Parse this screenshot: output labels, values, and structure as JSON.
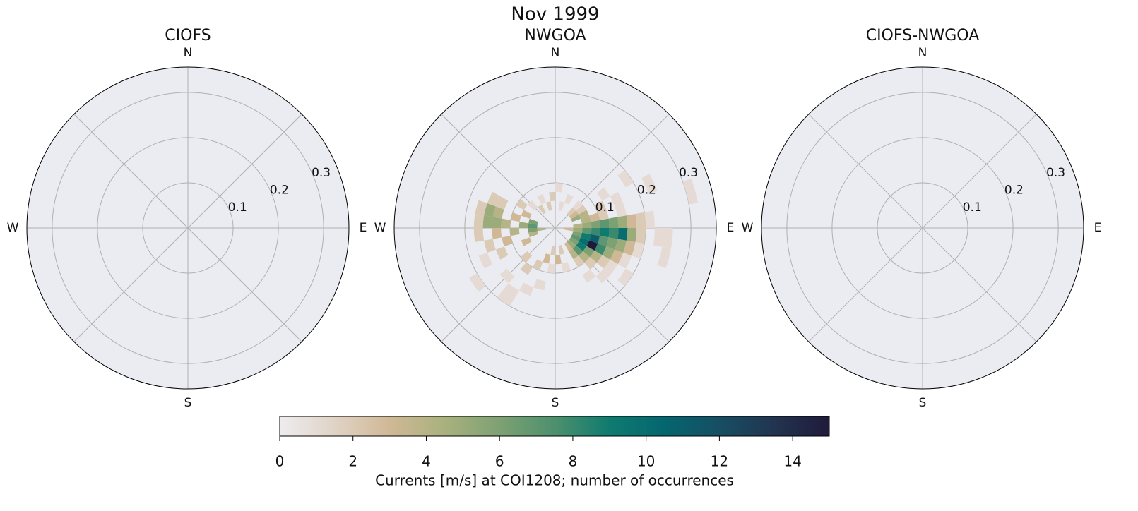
{
  "title": "Nov 1999",
  "colorbar": {
    "label": "Currents [m/s] at COI1208; number of occurrences",
    "lim": [
      0,
      15
    ],
    "ticks": [
      0,
      2,
      4,
      6,
      8,
      10,
      12,
      14
    ],
    "colormap": [
      "#eeecef",
      "#e0d3c6",
      "#d0b896",
      "#a9b17e",
      "#7ea173",
      "#4d906e",
      "#0f7b6f",
      "#04666f",
      "#174e64",
      "#22344f",
      "#1f1a3a"
    ]
  },
  "chart_data": [
    {
      "type": "polar-histogram",
      "title": "CIOFS",
      "directions": [
        "N",
        "E",
        "S",
        "W"
      ],
      "rlim": [
        0,
        0.356
      ],
      "rticks": [
        0.1,
        0.2,
        0.3
      ],
      "grid": true,
      "bin_width": {
        "direction": 10,
        "speed": 0.02
      },
      "cells": []
    },
    {
      "type": "polar-histogram",
      "title": "NWGOA",
      "directions": [
        "N",
        "E",
        "S",
        "W"
      ],
      "rlim": [
        0,
        0.356
      ],
      "rticks": [
        0.1,
        0.2,
        0.3
      ],
      "grid": true,
      "bin_width": {
        "direction": 10,
        "speed": 0.02
      },
      "cells": [
        {
          "dir": 80,
          "speed": 0.04,
          "count": 4
        },
        {
          "dir": 80,
          "speed": 0.06,
          "count": 5
        },
        {
          "dir": 80,
          "speed": 0.08,
          "count": 6
        },
        {
          "dir": 80,
          "speed": 0.1,
          "count": 7
        },
        {
          "dir": 80,
          "speed": 0.12,
          "count": 6
        },
        {
          "dir": 80,
          "speed": 0.14,
          "count": 5
        },
        {
          "dir": 80,
          "speed": 0.16,
          "count": 3
        },
        {
          "dir": 80,
          "speed": 0.18,
          "count": 2
        },
        {
          "dir": 80,
          "speed": 0.2,
          "count": 1
        },
        {
          "dir": 90,
          "speed": 0.02,
          "count": 3
        },
        {
          "dir": 90,
          "speed": 0.04,
          "count": 5
        },
        {
          "dir": 90,
          "speed": 0.06,
          "count": 7
        },
        {
          "dir": 90,
          "speed": 0.08,
          "count": 8
        },
        {
          "dir": 90,
          "speed": 0.1,
          "count": 9
        },
        {
          "dir": 90,
          "speed": 0.12,
          "count": 8
        },
        {
          "dir": 90,
          "speed": 0.14,
          "count": 10
        },
        {
          "dir": 90,
          "speed": 0.16,
          "count": 5
        },
        {
          "dir": 90,
          "speed": 0.18,
          "count": 2
        },
        {
          "dir": 90,
          "speed": 0.22,
          "count": 1
        },
        {
          "dir": 90,
          "speed": 0.24,
          "count": 1
        },
        {
          "dir": 100,
          "speed": 0.04,
          "count": 6
        },
        {
          "dir": 100,
          "speed": 0.06,
          "count": 9
        },
        {
          "dir": 100,
          "speed": 0.08,
          "count": 11
        },
        {
          "dir": 100,
          "speed": 0.1,
          "count": 7
        },
        {
          "dir": 100,
          "speed": 0.12,
          "count": 6
        },
        {
          "dir": 100,
          "speed": 0.14,
          "count": 5
        },
        {
          "dir": 100,
          "speed": 0.16,
          "count": 3
        },
        {
          "dir": 100,
          "speed": 0.18,
          "count": 1
        },
        {
          "dir": 100,
          "speed": 0.24,
          "count": 1
        },
        {
          "dir": 110,
          "speed": 0.04,
          "count": 7
        },
        {
          "dir": 110,
          "speed": 0.06,
          "count": 10
        },
        {
          "dir": 110,
          "speed": 0.08,
          "count": 15
        },
        {
          "dir": 110,
          "speed": 0.1,
          "count": 8
        },
        {
          "dir": 110,
          "speed": 0.12,
          "count": 5
        },
        {
          "dir": 110,
          "speed": 0.14,
          "count": 3
        },
        {
          "dir": 110,
          "speed": 0.16,
          "count": 1
        },
        {
          "dir": 120,
          "speed": 0.04,
          "count": 6
        },
        {
          "dir": 120,
          "speed": 0.06,
          "count": 9
        },
        {
          "dir": 120,
          "speed": 0.08,
          "count": 6
        },
        {
          "dir": 120,
          "speed": 0.1,
          "count": 4
        },
        {
          "dir": 120,
          "speed": 0.12,
          "count": 2
        },
        {
          "dir": 120,
          "speed": 0.14,
          "count": 1
        },
        {
          "dir": 120,
          "speed": 0.18,
          "count": 1
        },
        {
          "dir": 130,
          "speed": 0.04,
          "count": 5
        },
        {
          "dir": 130,
          "speed": 0.06,
          "count": 7
        },
        {
          "dir": 130,
          "speed": 0.08,
          "count": 4
        },
        {
          "dir": 130,
          "speed": 0.1,
          "count": 2
        },
        {
          "dir": 130,
          "speed": 0.14,
          "count": 1
        },
        {
          "dir": 140,
          "speed": 0.04,
          "count": 3
        },
        {
          "dir": 140,
          "speed": 0.06,
          "count": 4
        },
        {
          "dir": 140,
          "speed": 0.08,
          "count": 2
        },
        {
          "dir": 140,
          "speed": 0.12,
          "count": 1
        },
        {
          "dir": 70,
          "speed": 0.06,
          "count": 4
        },
        {
          "dir": 70,
          "speed": 0.08,
          "count": 3
        },
        {
          "dir": 70,
          "speed": 0.1,
          "count": 2
        },
        {
          "dir": 70,
          "speed": 0.14,
          "count": 1
        },
        {
          "dir": 70,
          "speed": 0.3,
          "count": 1
        },
        {
          "dir": 60,
          "speed": 0.04,
          "count": 5
        },
        {
          "dir": 60,
          "speed": 0.06,
          "count": 4
        },
        {
          "dir": 60,
          "speed": 0.1,
          "count": 2
        },
        {
          "dir": 60,
          "speed": 0.14,
          "count": 1
        },
        {
          "dir": 60,
          "speed": 0.22,
          "count": 1
        },
        {
          "dir": 50,
          "speed": 0.04,
          "count": 3
        },
        {
          "dir": 50,
          "speed": 0.06,
          "count": 2
        },
        {
          "dir": 50,
          "speed": 0.12,
          "count": 1
        },
        {
          "dir": 50,
          "speed": 0.18,
          "count": 1
        },
        {
          "dir": 40,
          "speed": 0.04,
          "count": 2
        },
        {
          "dir": 40,
          "speed": 0.06,
          "count": 1
        },
        {
          "dir": 10,
          "speed": 0.04,
          "count": 1
        },
        {
          "dir": 350,
          "speed": 0.06,
          "count": 2
        },
        {
          "dir": 0,
          "speed": 0.08,
          "count": 1
        },
        {
          "dir": 20,
          "speed": 0.06,
          "count": 1
        },
        {
          "dir": 160,
          "speed": 0.04,
          "count": 2
        },
        {
          "dir": 160,
          "speed": 0.08,
          "count": 1
        },
        {
          "dir": 170,
          "speed": 0.06,
          "count": 3
        },
        {
          "dir": 180,
          "speed": 0.04,
          "count": 2
        },
        {
          "dir": 180,
          "speed": 0.08,
          "count": 1
        },
        {
          "dir": 190,
          "speed": 0.06,
          "count": 3
        },
        {
          "dir": 190,
          "speed": 0.12,
          "count": 1
        },
        {
          "dir": 200,
          "speed": 0.08,
          "count": 2
        },
        {
          "dir": 200,
          "speed": 0.14,
          "count": 1
        },
        {
          "dir": 210,
          "speed": 0.1,
          "count": 2
        },
        {
          "dir": 210,
          "speed": 0.16,
          "count": 1
        },
        {
          "dir": 210,
          "speed": 0.18,
          "count": 1
        },
        {
          "dir": 220,
          "speed": 0.08,
          "count": 2
        },
        {
          "dir": 220,
          "speed": 0.14,
          "count": 1
        },
        {
          "dir": 230,
          "speed": 0.2,
          "count": 1
        },
        {
          "dir": 240,
          "speed": 0.06,
          "count": 3
        },
        {
          "dir": 240,
          "speed": 0.12,
          "count": 2
        },
        {
          "dir": 240,
          "speed": 0.16,
          "count": 1
        },
        {
          "dir": 250,
          "speed": 0.04,
          "count": 4
        },
        {
          "dir": 250,
          "speed": 0.1,
          "count": 3
        },
        {
          "dir": 250,
          "speed": 0.14,
          "count": 2
        },
        {
          "dir": 260,
          "speed": 0.02,
          "count": 4
        },
        {
          "dir": 260,
          "speed": 0.04,
          "count": 6
        },
        {
          "dir": 260,
          "speed": 0.08,
          "count": 4
        },
        {
          "dir": 260,
          "speed": 0.12,
          "count": 3
        },
        {
          "dir": 260,
          "speed": 0.16,
          "count": 2
        },
        {
          "dir": 270,
          "speed": 0.04,
          "count": 7
        },
        {
          "dir": 270,
          "speed": 0.06,
          "count": 5
        },
        {
          "dir": 270,
          "speed": 0.1,
          "count": 4
        },
        {
          "dir": 270,
          "speed": 0.12,
          "count": 5
        },
        {
          "dir": 270,
          "speed": 0.14,
          "count": 5
        },
        {
          "dir": 270,
          "speed": 0.16,
          "count": 2
        },
        {
          "dir": 280,
          "speed": 0.04,
          "count": 6
        },
        {
          "dir": 280,
          "speed": 0.08,
          "count": 3
        },
        {
          "dir": 280,
          "speed": 0.12,
          "count": 4
        },
        {
          "dir": 280,
          "speed": 0.14,
          "count": 5
        },
        {
          "dir": 280,
          "speed": 0.16,
          "count": 2
        },
        {
          "dir": 290,
          "speed": 0.06,
          "count": 3
        },
        {
          "dir": 290,
          "speed": 0.12,
          "count": 2
        },
        {
          "dir": 290,
          "speed": 0.14,
          "count": 2
        },
        {
          "dir": 300,
          "speed": 0.08,
          "count": 2
        },
        {
          "dir": 310,
          "speed": 0.06,
          "count": 1
        },
        {
          "dir": 320,
          "speed": 0.04,
          "count": 2
        },
        {
          "dir": 330,
          "speed": 0.06,
          "count": 1
        },
        {
          "dir": 340,
          "speed": 0.04,
          "count": 2
        }
      ]
    },
    {
      "type": "polar-histogram",
      "title": "CIOFS-NWGOA",
      "directions": [
        "N",
        "E",
        "S",
        "W"
      ],
      "rlim": [
        0,
        0.356
      ],
      "rticks": [
        0.1,
        0.2,
        0.3
      ],
      "grid": true,
      "bin_width": {
        "direction": 10,
        "speed": 0.02
      },
      "cells": []
    }
  ]
}
